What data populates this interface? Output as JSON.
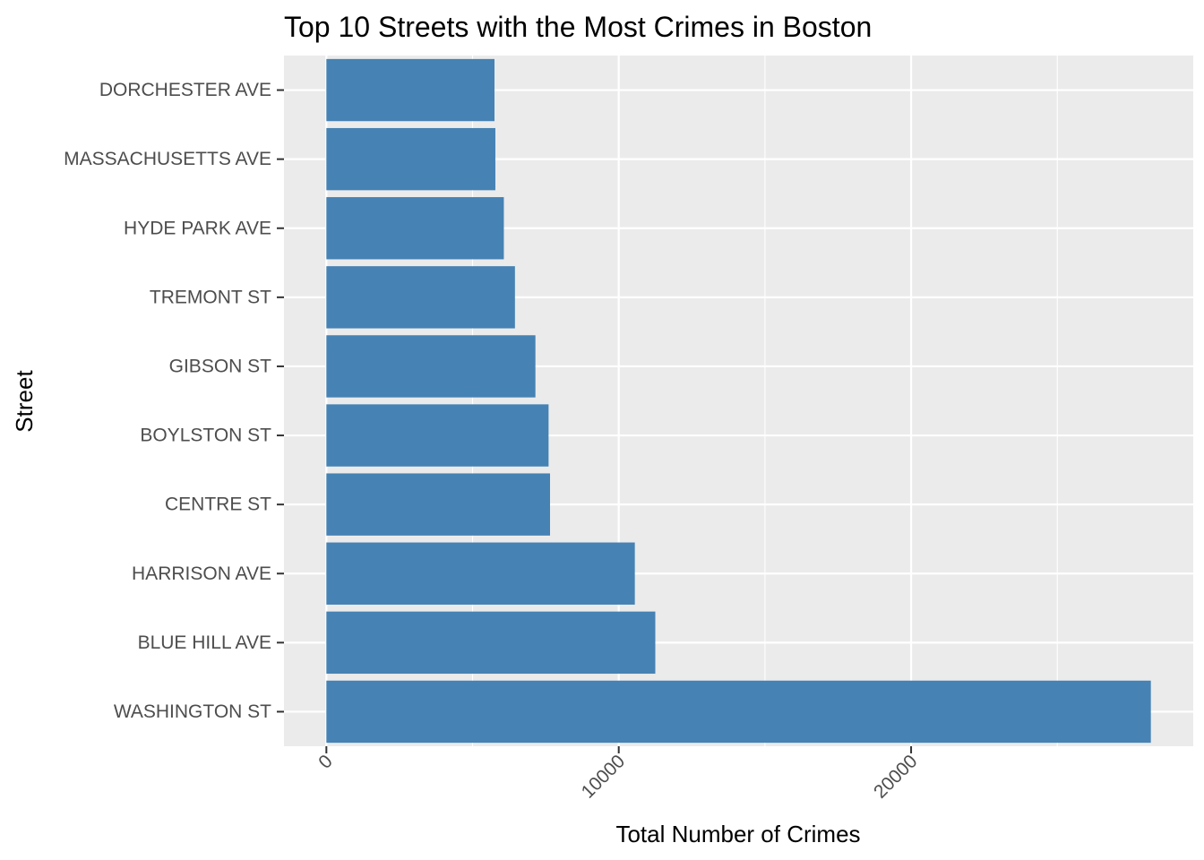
{
  "chart_data": {
    "type": "bar",
    "orientation": "horizontal",
    "title": "Top 10 Streets with the Most Crimes in Boston",
    "xlabel": "Total Number of Crimes",
    "ylabel": "Street",
    "categories": [
      "WASHINGTON ST",
      "BLUE HILL AVE",
      "HARRISON AVE",
      "CENTRE ST",
      "BOYLSTON ST",
      "GIBSON ST",
      "TREMONT ST",
      "HYDE PARK AVE",
      "MASSACHUSETTS AVE",
      "DORCHESTER AVE"
    ],
    "values": [
      28200,
      11250,
      10550,
      7650,
      7600,
      7150,
      6450,
      6070,
      5780,
      5750
    ],
    "xlim": [
      -1450,
      29650
    ],
    "xticks": [
      "0",
      "10000",
      "20000"
    ],
    "xtick_values": [
      0,
      10000,
      20000
    ],
    "bar_color": "#4682B4",
    "panel_color": "#EBEBEB",
    "grid": true,
    "legend": "none"
  }
}
